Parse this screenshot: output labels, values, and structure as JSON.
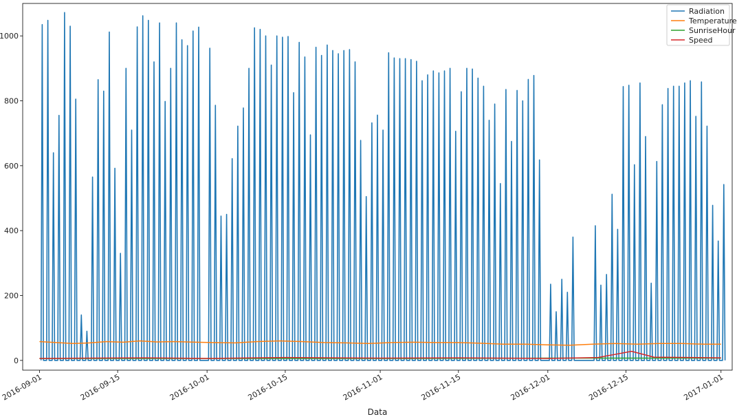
{
  "chart_data": {
    "type": "line",
    "title": "",
    "xlabel": "Data",
    "ylabel": "",
    "ylim": [
      -30,
      1100
    ],
    "xlim": [
      "2016-08-29",
      "2017-01-03"
    ],
    "yticks": [
      0,
      200,
      400,
      600,
      800,
      1000
    ],
    "xticks": [
      "2016-09-01",
      "2016-09-15",
      "2016-10-01",
      "2016-10-15",
      "2016-11-01",
      "2016-11-15",
      "2016-12-01",
      "2016-12-15",
      "2017-01-01"
    ],
    "grid": false,
    "legend_position": "top-right",
    "series": [
      {
        "name": "Radiation",
        "color": "#1f77b4",
        "daily_peaks": [
          [
            "2016-09-01",
            1035
          ],
          [
            "2016-09-02",
            1048
          ],
          [
            "2016-09-03",
            640
          ],
          [
            "2016-09-04",
            755
          ],
          [
            "2016-09-05",
            1072
          ],
          [
            "2016-09-06",
            1030
          ],
          [
            "2016-09-07",
            805
          ],
          [
            "2016-09-08",
            140
          ],
          [
            "2016-09-09",
            90
          ],
          [
            "2016-09-10",
            565
          ],
          [
            "2016-09-11",
            865
          ],
          [
            "2016-09-12",
            830
          ],
          [
            "2016-09-13",
            1012
          ],
          [
            "2016-09-14",
            592
          ],
          [
            "2016-09-15",
            330
          ],
          [
            "2016-09-16",
            900
          ],
          [
            "2016-09-17",
            710
          ],
          [
            "2016-09-18",
            1028
          ],
          [
            "2016-09-19",
            1062
          ],
          [
            "2016-09-20",
            1048
          ],
          [
            "2016-09-21",
            920
          ],
          [
            "2016-09-22",
            1040
          ],
          [
            "2016-09-23",
            798
          ],
          [
            "2016-09-24",
            900
          ],
          [
            "2016-09-25",
            1040
          ],
          [
            "2016-09-26",
            988
          ],
          [
            "2016-09-27",
            970
          ],
          [
            "2016-09-28",
            1015
          ],
          [
            "2016-09-29",
            1027
          ],
          [
            "2016-10-01",
            962
          ],
          [
            "2016-10-02",
            786
          ],
          [
            "2016-10-03",
            445
          ],
          [
            "2016-10-04",
            450
          ],
          [
            "2016-10-05",
            622
          ],
          [
            "2016-10-06",
            722
          ],
          [
            "2016-10-07",
            778
          ],
          [
            "2016-10-08",
            900
          ],
          [
            "2016-10-09",
            1025
          ],
          [
            "2016-10-10",
            1020
          ],
          [
            "2016-10-11",
            1000
          ],
          [
            "2016-10-12",
            910
          ],
          [
            "2016-10-13",
            1000
          ],
          [
            "2016-10-14",
            996
          ],
          [
            "2016-10-15",
            998
          ],
          [
            "2016-10-16",
            825
          ],
          [
            "2016-10-17",
            980
          ],
          [
            "2016-10-18",
            935
          ],
          [
            "2016-10-19",
            695
          ],
          [
            "2016-10-20",
            965
          ],
          [
            "2016-10-21",
            940
          ],
          [
            "2016-10-22",
            972
          ],
          [
            "2016-10-23",
            955
          ],
          [
            "2016-10-24",
            945
          ],
          [
            "2016-10-25",
            955
          ],
          [
            "2016-10-26",
            958
          ],
          [
            "2016-10-27",
            920
          ],
          [
            "2016-10-28",
            678
          ],
          [
            "2016-10-29",
            505
          ],
          [
            "2016-10-30",
            732
          ],
          [
            "2016-10-31",
            756
          ],
          [
            "2016-11-01",
            710
          ],
          [
            "2016-11-02",
            948
          ],
          [
            "2016-11-03",
            932
          ],
          [
            "2016-11-04",
            930
          ],
          [
            "2016-11-05",
            930
          ],
          [
            "2016-11-06",
            927
          ],
          [
            "2016-11-07",
            922
          ],
          [
            "2016-11-08",
            862
          ],
          [
            "2016-11-09",
            880
          ],
          [
            "2016-11-10",
            892
          ],
          [
            "2016-11-11",
            886
          ],
          [
            "2016-11-12",
            892
          ],
          [
            "2016-11-13",
            900
          ],
          [
            "2016-11-14",
            706
          ],
          [
            "2016-11-15",
            828
          ],
          [
            "2016-11-16",
            900
          ],
          [
            "2016-11-17",
            898
          ],
          [
            "2016-11-18",
            870
          ],
          [
            "2016-11-19",
            845
          ],
          [
            "2016-11-20",
            740
          ],
          [
            "2016-11-21",
            790
          ],
          [
            "2016-11-22",
            545
          ],
          [
            "2016-11-23",
            835
          ],
          [
            "2016-11-24",
            675
          ],
          [
            "2016-11-25",
            832
          ],
          [
            "2016-11-26",
            800
          ],
          [
            "2016-11-27",
            866
          ],
          [
            "2016-11-28",
            878
          ],
          [
            "2016-11-29",
            618
          ],
          [
            "2016-12-01",
            235
          ],
          [
            "2016-12-02",
            150
          ],
          [
            "2016-12-03",
            250
          ],
          [
            "2016-12-04",
            210
          ],
          [
            "2016-12-05",
            380
          ],
          [
            "2016-12-09",
            415
          ],
          [
            "2016-12-10",
            232
          ],
          [
            "2016-12-11",
            265
          ],
          [
            "2016-12-12",
            512
          ],
          [
            "2016-12-13",
            404
          ],
          [
            "2016-12-14",
            844
          ],
          [
            "2016-12-15",
            848
          ],
          [
            "2016-12-16",
            603
          ],
          [
            "2016-12-17",
            855
          ],
          [
            "2016-12-18",
            690
          ],
          [
            "2016-12-19",
            238
          ],
          [
            "2016-12-20",
            613
          ],
          [
            "2016-12-21",
            788
          ],
          [
            "2016-12-22",
            838
          ],
          [
            "2016-12-23",
            845
          ],
          [
            "2016-12-24",
            845
          ],
          [
            "2016-12-25",
            855
          ],
          [
            "2016-12-26",
            862
          ],
          [
            "2016-12-27",
            752
          ],
          [
            "2016-12-28",
            858
          ],
          [
            "2016-12-29",
            722
          ],
          [
            "2016-12-30",
            478
          ],
          [
            "2016-12-31",
            368
          ],
          [
            "2017-01-01",
            542
          ]
        ]
      },
      {
        "name": "Temperature",
        "color": "#ff7f0e",
        "points": [
          [
            "2016-09-01",
            58
          ],
          [
            "2016-09-04",
            55
          ],
          [
            "2016-09-07",
            52
          ],
          [
            "2016-09-10",
            54
          ],
          [
            "2016-09-13",
            58
          ],
          [
            "2016-09-16",
            56
          ],
          [
            "2016-09-19",
            60
          ],
          [
            "2016-09-22",
            57
          ],
          [
            "2016-09-25",
            58
          ],
          [
            "2016-09-29",
            56
          ],
          [
            "2016-10-02",
            55
          ],
          [
            "2016-10-06",
            54
          ],
          [
            "2016-10-10",
            58
          ],
          [
            "2016-10-14",
            60
          ],
          [
            "2016-10-18",
            58
          ],
          [
            "2016-10-22",
            55
          ],
          [
            "2016-10-26",
            54
          ],
          [
            "2016-10-30",
            52
          ],
          [
            "2016-11-03",
            55
          ],
          [
            "2016-11-07",
            56
          ],
          [
            "2016-11-11",
            55
          ],
          [
            "2016-11-15",
            55
          ],
          [
            "2016-11-19",
            53
          ],
          [
            "2016-11-23",
            50
          ],
          [
            "2016-11-27",
            50
          ],
          [
            "2016-12-01",
            48
          ],
          [
            "2016-12-05",
            47
          ],
          [
            "2016-12-09",
            50
          ],
          [
            "2016-12-13",
            52
          ],
          [
            "2016-12-17",
            50
          ],
          [
            "2016-12-21",
            52
          ],
          [
            "2016-12-25",
            52
          ],
          [
            "2016-12-29",
            50
          ],
          [
            "2017-01-01",
            50
          ]
        ]
      },
      {
        "name": "SunriseHour",
        "color": "#2ca02c",
        "points": [
          [
            "2016-09-01",
            6
          ],
          [
            "2016-10-01",
            6
          ],
          [
            "2016-11-01",
            6
          ],
          [
            "2016-11-06",
            6
          ],
          [
            "2016-12-01",
            7
          ],
          [
            "2017-01-01",
            7
          ]
        ]
      },
      {
        "name": "Speed",
        "color": "#d62728",
        "points": [
          [
            "2016-09-01",
            6
          ],
          [
            "2016-09-10",
            7
          ],
          [
            "2016-09-20",
            8
          ],
          [
            "2016-10-01",
            6
          ],
          [
            "2016-10-15",
            9
          ],
          [
            "2016-11-01",
            7
          ],
          [
            "2016-11-15",
            8
          ],
          [
            "2016-12-01",
            6
          ],
          [
            "2016-12-10",
            9
          ],
          [
            "2016-12-16",
            28
          ],
          [
            "2016-12-20",
            10
          ],
          [
            "2017-01-01",
            8
          ]
        ]
      }
    ]
  }
}
